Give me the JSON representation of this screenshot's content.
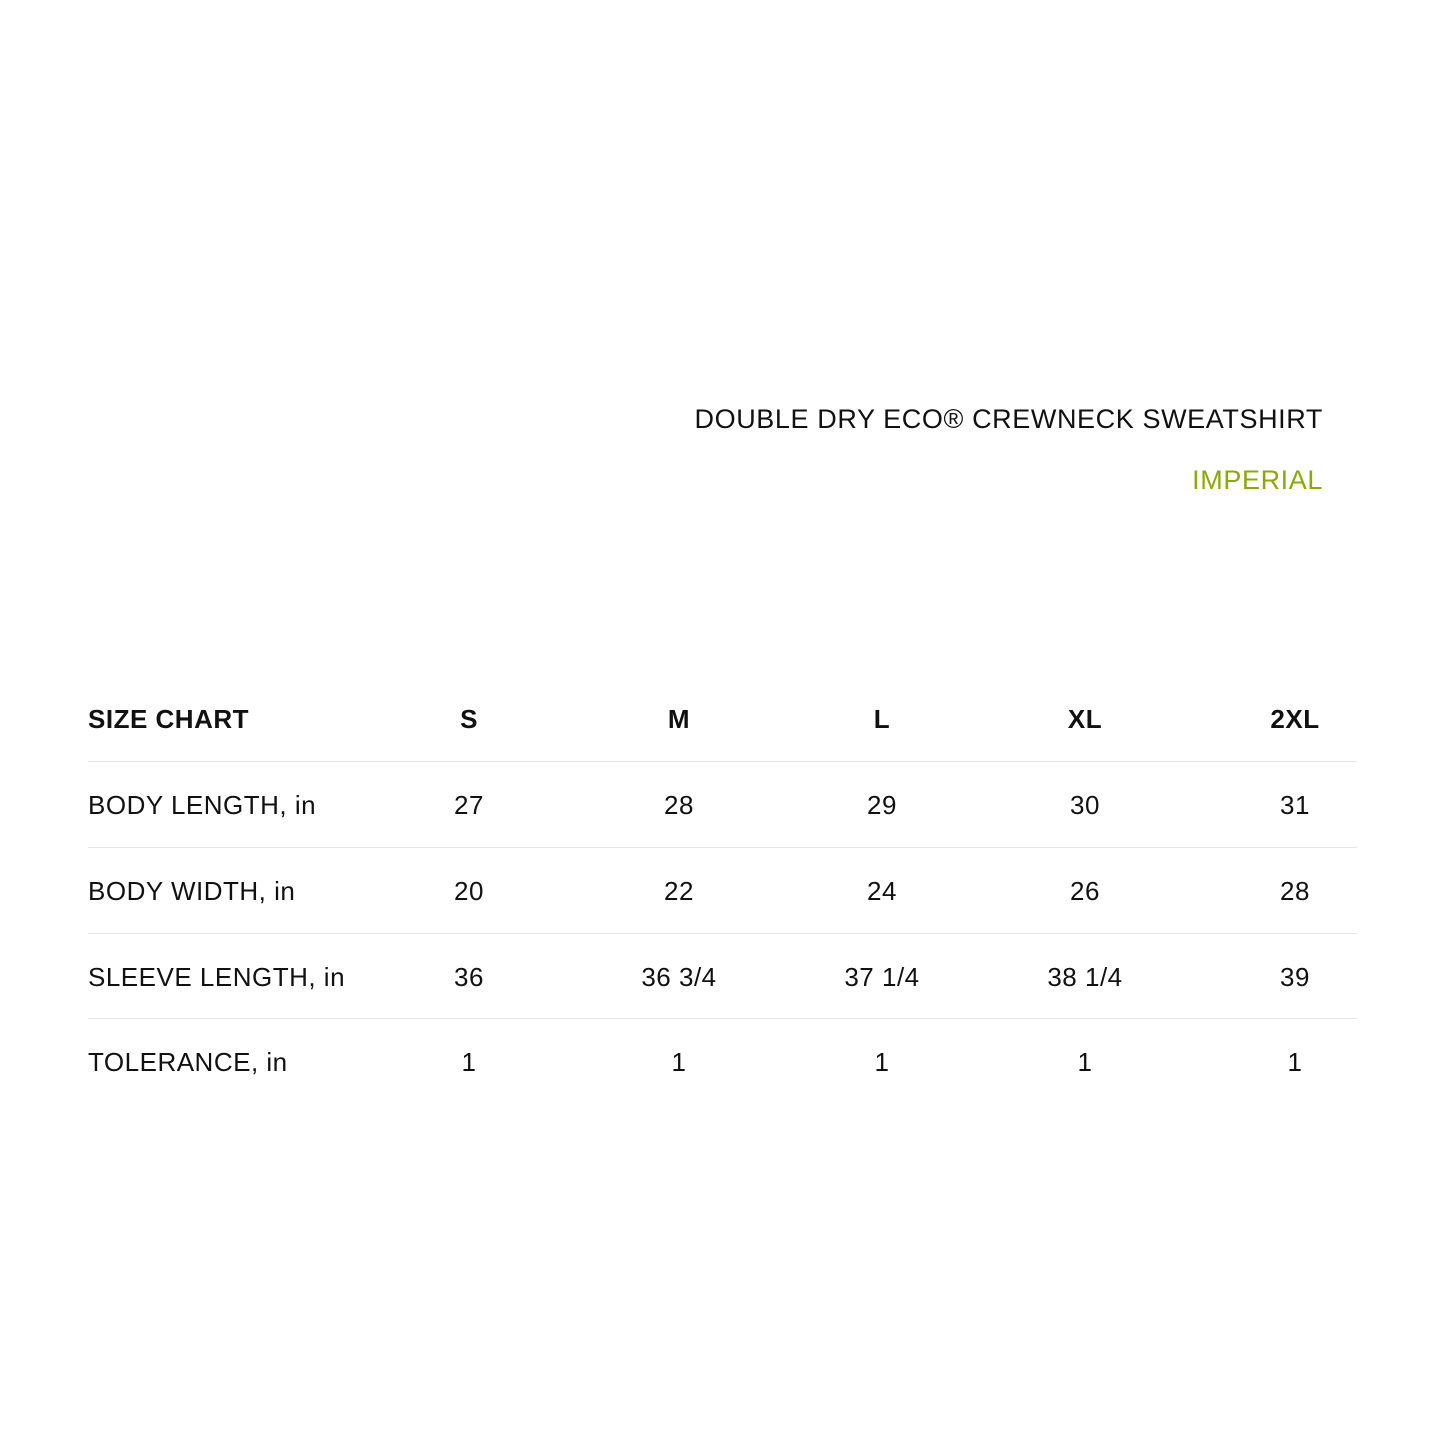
{
  "header": {
    "title": "DOUBLE DRY ECO® CREWNECK SWEATSHIRT",
    "unit_system": "IMPERIAL",
    "accent_color": "#8aac00"
  },
  "table": {
    "columns": [
      "SIZE CHART",
      "S",
      "M",
      "L",
      "XL",
      "2XL"
    ],
    "rows": [
      {
        "label": "BODY LENGTH, in",
        "values": [
          "27",
          "28",
          "29",
          "30",
          "31"
        ]
      },
      {
        "label": "BODY WIDTH, in",
        "values": [
          "20",
          "22",
          "24",
          "26",
          "28"
        ]
      },
      {
        "label": "SLEEVE LENGTH, in",
        "values": [
          "36",
          "36 3/4",
          "37 1/4",
          "38 1/4",
          "39"
        ]
      },
      {
        "label": "TOLERANCE, in",
        "values": [
          "1",
          "1",
          "1",
          "1",
          "1"
        ]
      }
    ]
  }
}
